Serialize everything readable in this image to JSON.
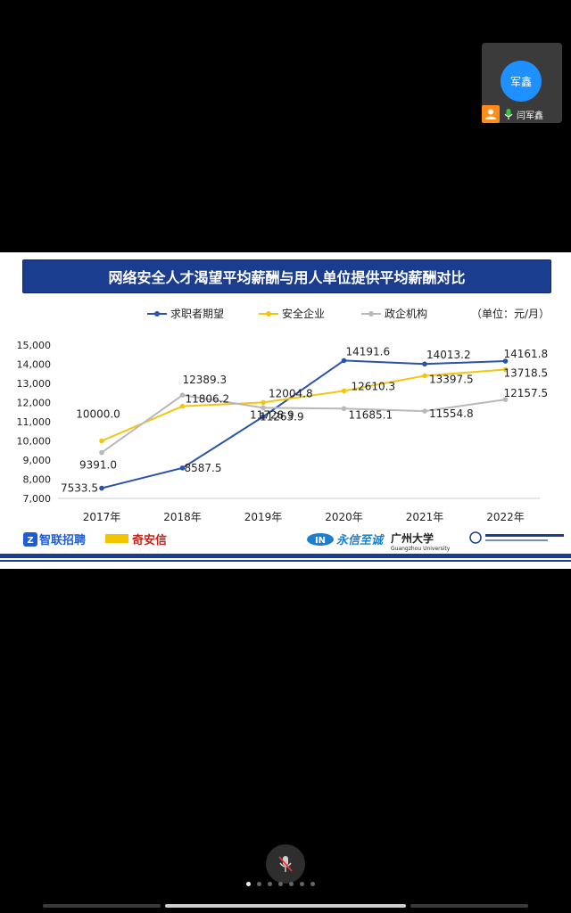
{
  "participant": {
    "avatar_text": "军鑫",
    "name": "闫军鑫",
    "avatar_color": "#1e90ff",
    "user_badge_color": "#ff8c1a",
    "mic_color": "#39c43b"
  },
  "slide": {
    "title": "网络安全人才渴望平均薪酬与用人单位提供平均薪酬对比",
    "unit_label": "（单位：元/月）",
    "logos": [
      "智联招聘",
      "奇安信",
      "永信至诚",
      "广州大学",
      "Guangzhou University"
    ]
  },
  "chart_data": {
    "type": "line",
    "categories": [
      "2017年",
      "2018年",
      "2019年",
      "2020年",
      "2021年",
      "2022年"
    ],
    "series": [
      {
        "name": "求职者期望",
        "color": "#2a52a8",
        "values": [
          7533.5,
          8587.5,
          11263.9,
          14191.6,
          14013.2,
          14161.8
        ]
      },
      {
        "name": "安全企业",
        "color": "#f2c511",
        "values": [
          10000.0,
          11806.2,
          12004.8,
          12610.3,
          13397.5,
          13718.5
        ]
      },
      {
        "name": "政企机构",
        "color": "#b8b8b8",
        "values": [
          9391.0,
          12389.3,
          11728.9,
          11685.1,
          11554.8,
          12157.5
        ]
      }
    ],
    "data_labels": [
      [
        "7533.5",
        "8587.5",
        "11263.9",
        "14191.6",
        "14013.2",
        "14161.8"
      ],
      [
        "10000.0",
        "11806.2",
        "12004.8",
        "12610.3",
        "13397.5",
        "13718.5"
      ],
      [
        "9391.0",
        "12389.3",
        "11728.9",
        "11685.1",
        "11554.8",
        "12157.5"
      ]
    ],
    "yticks": [
      "15,000",
      "14,000",
      "13,000",
      "12,000",
      "11,000",
      "10,000",
      "9,000",
      "8,000",
      "7,000"
    ],
    "ylim": [
      7000,
      15000
    ],
    "legend_position": "top"
  }
}
